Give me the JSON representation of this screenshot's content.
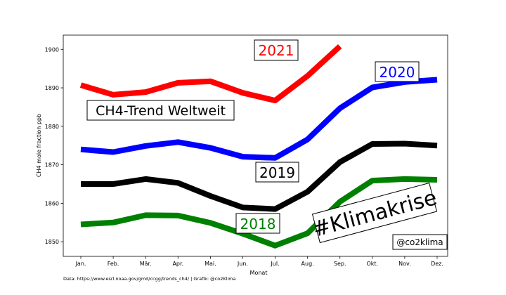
{
  "chart_data": {
    "type": "line",
    "categories": [
      "Jan.",
      "Feb.",
      "Mär.",
      "Apr.",
      "Mai.",
      "Jun.",
      "Jul.",
      "Aug.",
      "Sep.",
      "Okt.",
      "Nov.",
      "Dez."
    ],
    "series": [
      {
        "name": "2021",
        "color": "#ff0000",
        "values": [
          1890.7,
          1888.2,
          1888.9,
          1891.3,
          1891.7,
          1888.7,
          1886.7,
          1893.1,
          1900.8,
          null,
          null,
          null
        ]
      },
      {
        "name": "2020",
        "color": "#0000ff",
        "values": [
          1874.0,
          1873.3,
          1874.9,
          1875.9,
          1874.4,
          1872.1,
          1871.8,
          1876.6,
          1884.7,
          1890.1,
          1891.5,
          1892.1
        ]
      },
      {
        "name": "2019",
        "color": "#000000",
        "values": [
          1865.0,
          1865.0,
          1866.3,
          1865.3,
          1861.9,
          1858.9,
          1858.5,
          1863.0,
          1870.7,
          1875.4,
          1875.5,
          1875.0
        ]
      },
      {
        "name": "2018",
        "color": "#008000",
        "values": [
          1854.5,
          1855.0,
          1856.9,
          1856.8,
          1854.9,
          1852.1,
          1849.0,
          1852.2,
          1860.4,
          1865.9,
          1866.3,
          1866.1
        ]
      }
    ],
    "title": "",
    "xlabel": "Monat",
    "ylabel": "CH4 mole fraction ppb",
    "ylim": [
      1846.2,
      1903.7
    ],
    "yticks": [
      1850,
      1860,
      1870,
      1880,
      1890,
      1900
    ],
    "grid": false,
    "annotations": {
      "title_box": "CH4-Trend Weltweit",
      "hashtag": "#Klimakrise",
      "handle": "@co2klima",
      "source": "Data: https://www.esrl.noaa.gov/gmd/ccgg/trends_ch4/ | Grafik: @co2Klima"
    }
  }
}
